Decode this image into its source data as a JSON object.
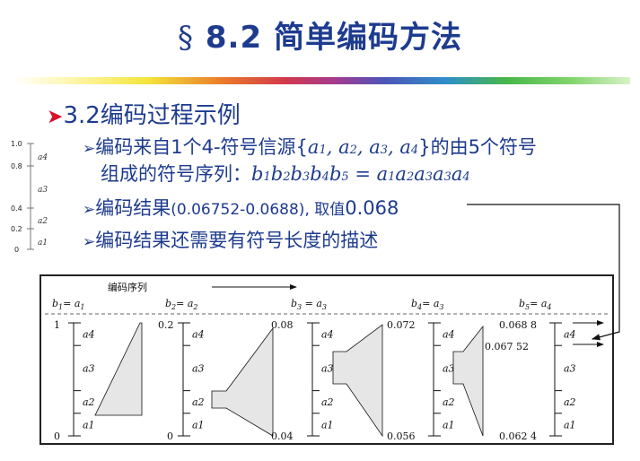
{
  "title": {
    "symbol": "§",
    "number": "8.2",
    "text": "简单编码方法"
  },
  "heading": {
    "label": "3.2编码过程示例"
  },
  "bullets": {
    "b1_line1_prefix": "编码来自1个4-符号信源{",
    "b1_line1_suffix": "}的由5个符号",
    "b1_line2_prefix": "组成的符号序列：",
    "b2_prefix": "编码结果",
    "b2_range": "(0.06752-0.0688)",
    "b2_sep": ", 取值",
    "b2_value": "0.068",
    "b3": "编码结果还需要有符号长度的描述"
  },
  "source_symbols": [
    "a1",
    "a2",
    "a3",
    "a4"
  ],
  "mini_scale": {
    "ticks": [
      "1.0",
      "0.8",
      "0.4",
      "0.2",
      "0"
    ],
    "symbols": [
      "a4",
      "a3",
      "a2",
      "a1"
    ]
  },
  "diagram": {
    "sequence_label": "编码序列",
    "steps": [
      {
        "b": "b1",
        "a": "a1",
        "top": "1",
        "bottom": "0"
      },
      {
        "b": "b2",
        "a": "a2",
        "top": "0.2",
        "bottom": "0"
      },
      {
        "b": "b3",
        "a": "a3",
        "top": "0.08",
        "bottom": "0.04"
      },
      {
        "b": "b4",
        "a": "a3",
        "top": "0.072",
        "bottom": "0.056"
      },
      {
        "b": "b5",
        "a": "a4",
        "top": "0.068 8",
        "bottom": "0.062 4",
        "mid": "0.067 52"
      }
    ],
    "interval_labels": [
      "a4",
      "a3",
      "a2",
      "a1"
    ]
  },
  "colors": {
    "title": "#1d3b8f",
    "bullet_arrow": "#d8102a",
    "shape_fill": "#e6e6e6"
  }
}
